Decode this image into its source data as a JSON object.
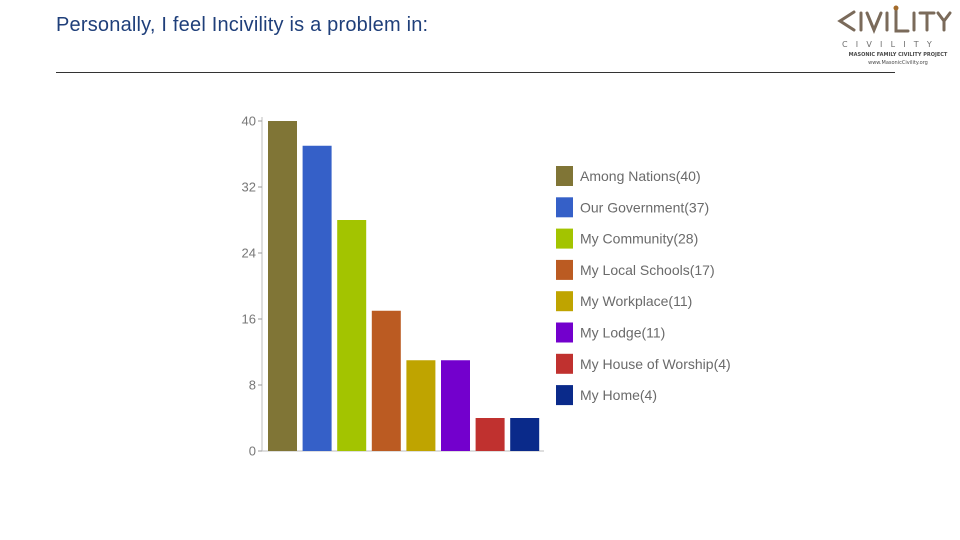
{
  "slide": {
    "title": "Personally, I feel Incivility is a problem in:"
  },
  "logo": {
    "word": "CIVILITY",
    "sub": "CIVILITY",
    "project": "MASONIC FAMILY CIVILITY PROJECT",
    "url": "www.MasonicCivility.org"
  },
  "chart_data": {
    "type": "bar",
    "title": "",
    "xlabel": "",
    "ylabel": "",
    "ylim": [
      0,
      40
    ],
    "yticks": [
      0,
      8,
      16,
      24,
      32,
      40
    ],
    "ytick_labels": [
      "0",
      "8",
      "16",
      "24",
      "32",
      "40"
    ],
    "categories": [
      "Among Nations",
      "Our Government",
      "My Community",
      "My Local Schools",
      "My Workplace",
      "My Lodge",
      "My House of Worship",
      "My Home"
    ],
    "values": [
      40,
      37,
      28,
      17,
      11,
      11,
      4,
      4
    ],
    "colors": [
      "#807536",
      "#3560c8",
      "#a3c400",
      "#bb5b22",
      "#bfa400",
      "#7300cd",
      "#c0312f",
      "#0a2a8a"
    ],
    "legend_labels": [
      "Among Nations(40)",
      "Our Government(37)",
      "My Community(28)",
      "My Local Schools(17)",
      "My Workplace(11)",
      "My Lodge(11)",
      "My House of Worship(4)",
      "My Home(4)"
    ],
    "legend_position": "right",
    "grid": false
  }
}
